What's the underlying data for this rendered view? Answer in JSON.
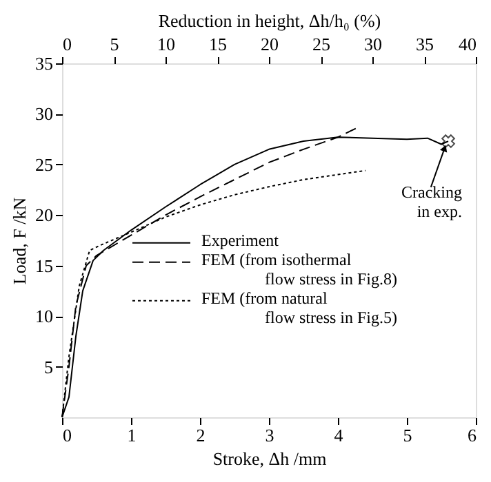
{
  "chart_data": {
    "type": "line",
    "xlabel": "Stroke, Δh /mm",
    "ylabel": "Load, F /kN",
    "x2label": "Reduction in height, Δh/h₀ (%)",
    "xlim": [
      0,
      6
    ],
    "xticks": [
      0,
      1,
      2,
      3,
      4,
      5,
      6
    ],
    "ylim": [
      0,
      35
    ],
    "yticks": [
      5,
      10,
      15,
      20,
      25,
      30,
      35
    ],
    "x2lim": [
      0,
      40
    ],
    "x2ticks": [
      0,
      5,
      10,
      15,
      20,
      25,
      30,
      35,
      40
    ],
    "grid": false,
    "legend": "bottom right",
    "marker": "none",
    "series": [
      {
        "name": "Experiment",
        "color": "#000000",
        "line_style": "solid",
        "x": [
          0,
          0.1,
          0.2,
          0.3,
          0.45,
          0.6,
          1,
          1.5,
          2,
          2.5,
          3,
          3.5,
          4,
          4.5,
          5,
          5.3,
          5.5,
          5.6
        ],
        "values": [
          0,
          2,
          8,
          12.5,
          15.5,
          16.5,
          18.5,
          20.8,
          23,
          25,
          26.5,
          27.3,
          27.7,
          27.6,
          27.5,
          27.6,
          27,
          27.3
        ]
      },
      {
        "name": "FEM (from isothermal flow stress in Fig.8)",
        "color": "#000000",
        "line_style": "dashed",
        "x": [
          0,
          0.1,
          0.2,
          0.35,
          0.5,
          1,
          1.5,
          2,
          2.5,
          3,
          3.5,
          4,
          4.3
        ],
        "values": [
          0,
          5,
          11,
          15,
          16,
          18,
          20,
          21.8,
          23.5,
          25.2,
          26.5,
          27.7,
          28.7
        ]
      },
      {
        "name": "FEM (from natural flow stress in Fig.5)",
        "color": "#000000",
        "line_style": "dotted",
        "x": [
          0,
          0.1,
          0.25,
          0.4,
          0.55,
          1,
          1.5,
          2,
          2.5,
          3,
          3.5,
          4,
          4.4
        ],
        "values": [
          0,
          6,
          13,
          16.5,
          17,
          18.3,
          19.8,
          21,
          22,
          22.8,
          23.5,
          24,
          24.4
        ]
      }
    ],
    "annotations": [
      {
        "text": "Cracking in exp.",
        "x": 5.6,
        "y": 27.3
      }
    ]
  }
}
